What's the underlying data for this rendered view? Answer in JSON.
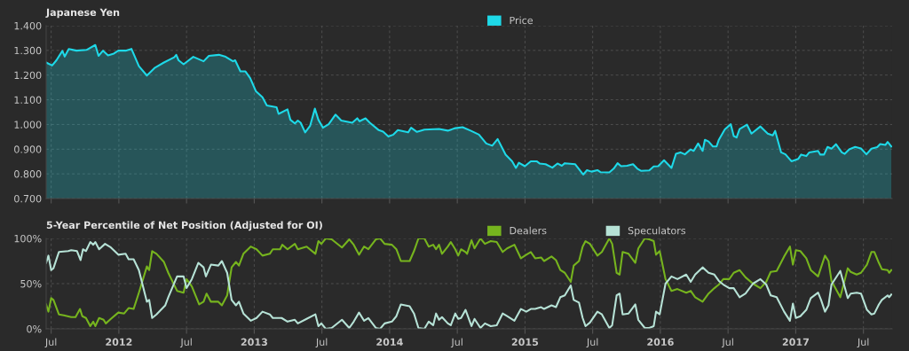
{
  "chart_data": [
    {
      "type": "area",
      "title": "Japanese Yen",
      "legend": "top",
      "grid": true,
      "tick_labels": "y",
      "xlim": [
        2011.463,
        2017.712
      ],
      "ylim": [
        0.7,
        1.4
      ],
      "yticks": [
        {
          "value": 0.7,
          "label": "0.700"
        },
        {
          "value": 0.8,
          "label": "0.800"
        },
        {
          "value": 0.9,
          "label": "0.900"
        },
        {
          "value": 1.0,
          "label": "1.000"
        },
        {
          "value": 1.1,
          "label": "1.100"
        },
        {
          "value": 1.2,
          "label": "1.200"
        },
        {
          "value": 1.3,
          "label": "1.300"
        },
        {
          "value": 1.4,
          "label": "1.400"
        }
      ],
      "series": [
        {
          "name": "Price",
          "color": "#1ed9e8",
          "x": [
            2011.463,
            2011.507,
            2011.539,
            2011.583,
            2011.6,
            2011.63,
            2011.687,
            2011.761,
            2011.826,
            2011.85,
            2011.883,
            2011.92,
            2011.963,
            2011.996,
            2012.05,
            2012.093,
            2012.148,
            2012.207,
            2012.267,
            2012.333,
            2012.409,
            2012.424,
            2012.441,
            2012.478,
            2012.55,
            2012.626,
            2012.665,
            2012.739,
            2012.789,
            2012.843,
            2012.859,
            2012.898,
            2012.935,
            2012.97,
            2013.013,
            2013.061,
            2013.093,
            2013.165,
            2013.18,
            2013.246,
            2013.267,
            2013.3,
            2013.322,
            2013.343,
            2013.376,
            2013.413,
            2013.448,
            2013.474,
            2013.507,
            2013.55,
            2013.6,
            2013.643,
            2013.724,
            2013.761,
            2013.778,
            2013.822,
            2013.854,
            2013.92,
            2013.952,
            2013.991,
            2014.028,
            2014.061,
            2014.137,
            2014.159,
            2014.202,
            2014.257,
            2014.365,
            2014.43,
            2014.485,
            2014.539,
            2014.598,
            2014.66,
            2014.714,
            2014.758,
            2014.798,
            2014.857,
            2014.905,
            2014.933,
            2014.955,
            2014.999,
            2015.043,
            2015.086,
            2015.108,
            2015.152,
            2015.202,
            2015.24,
            2015.272,
            2015.294,
            2015.371,
            2015.43,
            2015.458,
            2015.491,
            2015.535,
            2015.557,
            2015.623,
            2015.655,
            2015.684,
            2015.71,
            2015.754,
            2015.798,
            2015.83,
            2015.859,
            2015.918,
            2015.951,
            2015.984,
            2016.027,
            2016.082,
            2016.115,
            2016.148,
            2016.181,
            2016.224,
            2016.246,
            2016.279,
            2016.312,
            2016.329,
            2016.356,
            2016.388,
            2016.415,
            2016.432,
            2016.476,
            2016.52,
            2016.542,
            2016.563,
            2016.585,
            2016.64,
            2016.673,
            2016.739,
            2016.793,
            2016.83,
            2016.848,
            2016.892,
            2016.924,
            2016.968,
            2017.019,
            2017.04,
            2017.078,
            2017.1,
            2017.165,
            2017.181,
            2017.209,
            2017.235,
            2017.264,
            2017.297,
            2017.34,
            2017.362,
            2017.395,
            2017.439,
            2017.482,
            2017.522,
            2017.559,
            2017.602,
            2017.624,
            2017.662,
            2017.679,
            2017.706
          ],
          "values": [
            1.251,
            1.239,
            1.26,
            1.298,
            1.275,
            1.306,
            1.299,
            1.302,
            1.322,
            1.278,
            1.299,
            1.28,
            1.287,
            1.299,
            1.299,
            1.306,
            1.236,
            1.198,
            1.23,
            1.251,
            1.272,
            1.282,
            1.26,
            1.244,
            1.274,
            1.256,
            1.278,
            1.282,
            1.274,
            1.256,
            1.26,
            1.215,
            1.215,
            1.188,
            1.134,
            1.11,
            1.077,
            1.07,
            1.043,
            1.061,
            1.019,
            1.004,
            1.016,
            1.007,
            0.968,
            0.995,
            1.064,
            1.019,
            0.987,
            1.001,
            1.04,
            1.016,
            1.007,
            1.025,
            1.013,
            1.025,
            1.007,
            0.977,
            0.971,
            0.951,
            0.959,
            0.977,
            0.968,
            0.987,
            0.97,
            0.979,
            0.982,
            0.975,
            0.985,
            0.989,
            0.975,
            0.959,
            0.923,
            0.914,
            0.941,
            0.878,
            0.851,
            0.824,
            0.845,
            0.831,
            0.851,
            0.851,
            0.842,
            0.839,
            0.825,
            0.842,
            0.833,
            0.843,
            0.839,
            0.797,
            0.815,
            0.809,
            0.815,
            0.807,
            0.806,
            0.821,
            0.843,
            0.831,
            0.833,
            0.839,
            0.821,
            0.812,
            0.814,
            0.83,
            0.831,
            0.855,
            0.824,
            0.881,
            0.887,
            0.879,
            0.899,
            0.893,
            0.923,
            0.893,
            0.938,
            0.931,
            0.911,
            0.911,
            0.938,
            0.98,
            1.001,
            0.953,
            0.947,
            0.981,
            0.999,
            0.963,
            0.992,
            0.963,
            0.956,
            0.974,
            0.887,
            0.879,
            0.851,
            0.861,
            0.878,
            0.872,
            0.887,
            0.893,
            0.878,
            0.878,
            0.909,
            0.902,
            0.92,
            0.887,
            0.881,
            0.899,
            0.909,
            0.903,
            0.879,
            0.902,
            0.908,
            0.921,
            0.917,
            0.929,
            0.911
          ]
        }
      ]
    },
    {
      "type": "line",
      "title": "5-Year Percentile of Net Position (Adjusted for OI)",
      "legend": "top",
      "grid": true,
      "xlim": [
        2011.463,
        2017.712
      ],
      "ylim": [
        0,
        100
      ],
      "xticks": [
        {
          "value": 2011.5,
          "label": "Jul"
        },
        2012,
        {
          "value": 2012.5,
          "label": "Jul"
        },
        2013,
        {
          "value": 2013.5,
          "label": "Jul"
        },
        2014,
        {
          "value": 2014.5,
          "label": "Jul"
        },
        2015,
        {
          "value": 2015.5,
          "label": "Jul"
        },
        2016,
        {
          "value": 2016.5,
          "label": "Jul"
        },
        2017,
        {
          "value": 2017.5,
          "label": "Jul"
        }
      ],
      "yticks": [
        {
          "value": 0,
          "label": "0%"
        },
        {
          "value": 50,
          "label": "50%"
        },
        {
          "value": 100,
          "label": "100%"
        }
      ],
      "series": [
        {
          "name": "Dealers",
          "color": "#76b41e",
          "x": [
            2011.463,
            2011.48,
            2011.5,
            2011.517,
            2011.557,
            2011.593,
            2011.648,
            2011.68,
            2011.713,
            2011.73,
            2011.757,
            2011.789,
            2011.811,
            2011.826,
            2011.854,
            2011.887,
            2011.904,
            2011.941,
            2011.996,
            2012.039,
            2012.072,
            2012.109,
            2012.148,
            2012.207,
            2012.224,
            2012.246,
            2012.278,
            2012.333,
            2012.365,
            2012.43,
            2012.478,
            2012.5,
            2012.539,
            2012.593,
            2012.626,
            2012.648,
            2012.68,
            2012.735,
            2012.761,
            2012.8,
            2012.833,
            2012.865,
            2012.887,
            2012.92,
            2012.974,
            2013.017,
            2013.061,
            2013.115,
            2013.137,
            2013.191,
            2013.207,
            2013.246,
            2013.3,
            2013.322,
            2013.387,
            2013.452,
            2013.474,
            2013.496,
            2013.528,
            2013.572,
            2013.648,
            2013.702,
            2013.735,
            2013.774,
            2013.811,
            2013.843,
            2013.898,
            2013.93,
            2013.963,
            2014.017,
            2014.05,
            2014.083,
            2014.148,
            2014.18,
            2014.213,
            2014.257,
            2014.289,
            2014.322,
            2014.343,
            2014.365,
            2014.387,
            2014.43,
            2014.452,
            2014.485,
            2014.507,
            2014.528,
            2014.561,
            2014.572,
            2014.605,
            2014.627,
            2014.671,
            2014.704,
            2014.747,
            2014.791,
            2014.835,
            2014.868,
            2014.922,
            2014.97,
            2015.01,
            2015.043,
            2015.075,
            2015.119,
            2015.141,
            2015.196,
            2015.229,
            2015.261,
            2015.294,
            2015.338,
            2015.36,
            2015.399,
            2015.426,
            2015.447,
            2015.48,
            2015.535,
            2015.568,
            2015.623,
            2015.644,
            2015.677,
            2015.699,
            2015.721,
            2015.765,
            2015.815,
            2015.837,
            2015.885,
            2015.918,
            2015.951,
            2015.968,
            2015.995,
            2016.038,
            2016.082,
            2016.126,
            2016.191,
            2016.224,
            2016.257,
            2016.312,
            2016.356,
            2016.399,
            2016.432,
            2016.465,
            2016.509,
            2016.542,
            2016.585,
            2016.629,
            2016.684,
            2016.739,
            2016.782,
            2016.815,
            2016.859,
            2016.914,
            2016.957,
            2016.979,
            2017.001,
            2017.034,
            2017.078,
            2017.111,
            2017.165,
            2017.187,
            2017.216,
            2017.242,
            2017.264,
            2017.329,
            2017.384,
            2017.406,
            2017.45,
            2017.482,
            2017.526,
            2017.559,
            2017.581,
            2017.614,
            2017.636,
            2017.679,
            2017.69,
            2017.706
          ],
          "values": [
            27,
            19,
            34,
            32,
            16,
            15,
            13,
            13,
            22,
            14,
            12,
            3,
            8,
            3,
            12,
            10,
            6,
            11,
            18,
            17,
            23,
            22,
            40,
            69,
            65,
            86,
            83,
            74,
            62,
            42,
            40,
            55,
            47,
            27,
            30,
            39,
            30,
            30,
            26,
            37,
            68,
            74,
            70,
            83,
            91,
            88,
            81,
            83,
            88,
            88,
            93,
            88,
            94,
            88,
            91,
            83,
            97,
            94,
            100,
            99,
            90,
            99,
            93,
            82,
            91,
            88,
            99,
            100,
            94,
            93,
            88,
            75,
            75,
            86,
            100,
            100,
            91,
            93,
            88,
            93,
            83,
            91,
            96,
            88,
            81,
            88,
            85,
            83,
            98,
            89,
            100,
            94,
            97,
            96,
            85,
            89,
            93,
            78,
            82,
            85,
            78,
            79,
            75,
            80,
            76,
            65,
            62,
            52,
            70,
            75,
            91,
            97,
            94,
            81,
            85,
            100,
            94,
            62,
            60,
            85,
            83,
            73,
            89,
            100,
            99,
            97,
            82,
            86,
            55,
            42,
            44,
            40,
            42,
            35,
            30,
            39,
            45,
            49,
            55,
            55,
            62,
            65,
            57,
            50,
            45,
            52,
            63,
            64,
            80,
            91,
            71,
            87,
            86,
            78,
            65,
            58,
            68,
            81,
            75,
            53,
            35,
            67,
            63,
            60,
            62,
            71,
            85,
            85,
            73,
            66,
            65,
            62,
            65
          ]
        },
        {
          "name": "Speculators",
          "color": "#b6e2d6",
          "x": [
            2011.463,
            2011.48,
            2011.5,
            2011.517,
            2011.557,
            2011.626,
            2011.648,
            2011.691,
            2011.717,
            2011.735,
            2011.757,
            2011.789,
            2011.811,
            2011.826,
            2011.854,
            2011.898,
            2011.941,
            2011.996,
            2012.05,
            2012.072,
            2012.109,
            2012.148,
            2012.207,
            2012.224,
            2012.246,
            2012.278,
            2012.311,
            2012.343,
            2012.365,
            2012.43,
            2012.478,
            2012.5,
            2012.539,
            2012.587,
            2012.626,
            2012.643,
            2012.68,
            2012.735,
            2012.761,
            2012.8,
            2012.833,
            2012.865,
            2012.887,
            2012.92,
            2012.974,
            2013.017,
            2013.061,
            2013.115,
            2013.137,
            2013.202,
            2013.246,
            2013.3,
            2013.322,
            2013.387,
            2013.452,
            2013.474,
            2013.496,
            2013.528,
            2013.572,
            2013.648,
            2013.702,
            2013.735,
            2013.774,
            2013.811,
            2013.843,
            2013.898,
            2013.93,
            2013.963,
            2014.017,
            2014.05,
            2014.083,
            2014.148,
            2014.18,
            2014.213,
            2014.257,
            2014.289,
            2014.322,
            2014.343,
            2014.365,
            2014.387,
            2014.43,
            2014.452,
            2014.485,
            2014.507,
            2014.528,
            2014.561,
            2014.605,
            2014.627,
            2014.671,
            2014.704,
            2014.747,
            2014.791,
            2014.835,
            2014.868,
            2014.922,
            2014.97,
            2015.01,
            2015.043,
            2015.075,
            2015.119,
            2015.141,
            2015.196,
            2015.229,
            2015.261,
            2015.294,
            2015.338,
            2015.36,
            2015.399,
            2015.426,
            2015.447,
            2015.48,
            2015.535,
            2015.568,
            2015.623,
            2015.644,
            2015.677,
            2015.699,
            2015.721,
            2015.765,
            2015.815,
            2015.837,
            2015.885,
            2015.918,
            2015.951,
            2015.968,
            2015.995,
            2016.038,
            2016.082,
            2016.126,
            2016.191,
            2016.224,
            2016.257,
            2016.312,
            2016.356,
            2016.399,
            2016.432,
            2016.465,
            2016.509,
            2016.542,
            2016.585,
            2016.629,
            2016.684,
            2016.739,
            2016.782,
            2016.815,
            2016.859,
            2016.914,
            2016.957,
            2016.979,
            2017.001,
            2017.034,
            2017.078,
            2017.111,
            2017.165,
            2017.187,
            2017.216,
            2017.242,
            2017.264,
            2017.329,
            2017.384,
            2017.406,
            2017.45,
            2017.482,
            2017.526,
            2017.559,
            2017.581,
            2017.614,
            2017.636,
            2017.679,
            2017.69,
            2017.706
          ],
          "values": [
            73,
            81,
            65,
            67,
            85,
            86,
            87,
            86,
            76,
            88,
            86,
            96,
            93,
            96,
            88,
            94,
            90,
            82,
            83,
            77,
            77,
            65,
            30,
            32,
            12,
            16,
            21,
            26,
            35,
            58,
            58,
            45,
            55,
            73,
            68,
            58,
            71,
            70,
            75,
            62,
            32,
            26,
            30,
            17,
            9,
            12,
            19,
            16,
            12,
            12,
            8,
            10,
            6,
            11,
            16,
            3,
            6,
            0,
            1,
            10,
            1,
            8,
            18,
            9,
            12,
            1,
            0,
            6,
            8,
            14,
            27,
            25,
            17,
            1,
            0,
            8,
            4,
            17,
            10,
            13,
            6,
            4,
            17,
            11,
            12,
            21,
            3,
            11,
            1,
            6,
            3,
            4,
            17,
            14,
            9,
            22,
            19,
            22,
            22,
            24,
            22,
            26,
            24,
            35,
            37,
            48,
            32,
            29,
            12,
            3,
            7,
            19,
            16,
            1,
            4,
            37,
            39,
            16,
            17,
            27,
            10,
            1,
            1,
            3,
            19,
            16,
            50,
            58,
            55,
            60,
            52,
            60,
            68,
            62,
            60,
            53,
            49,
            45,
            45,
            35,
            39,
            50,
            55,
            49,
            37,
            35,
            19,
            9,
            28,
            12,
            14,
            21,
            34,
            40,
            32,
            19,
            26,
            49,
            64,
            34,
            39,
            40,
            39,
            21,
            16,
            17,
            27,
            32,
            37,
            35,
            38
          ]
        }
      ]
    }
  ]
}
